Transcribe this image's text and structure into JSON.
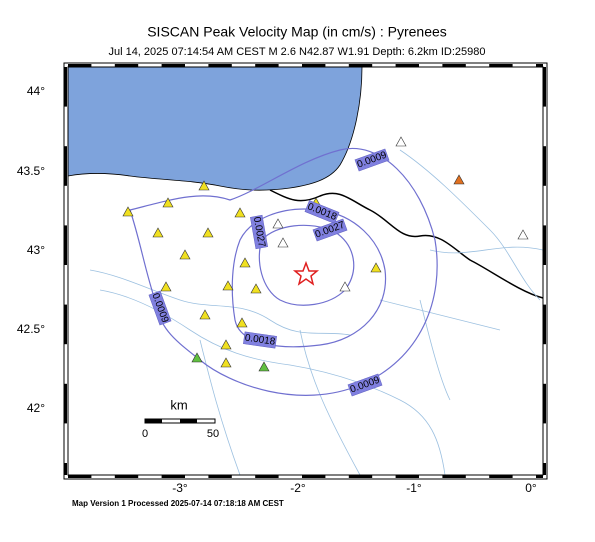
{
  "header": {
    "title": "SISCAN Peak Velocity Map (in cm/s) : Pyrenees",
    "subtitle": "Jul 14, 2025 07:14:54 AM CEST   M 2.6   N42.87 W1.91   Depth: 6.2km   ID:25980"
  },
  "axes": {
    "latitude_labels": [
      "44°",
      "43.5°",
      "43°",
      "42.5°",
      "42°"
    ],
    "longitude_labels": [
      "-3°",
      "-2°",
      "-1°",
      "0°"
    ]
  },
  "contour_labels": [
    "0.0009",
    "0.0009",
    "0.0009",
    "0.0018",
    "0.0018",
    "0.0027",
    "0.0027"
  ],
  "scale_bar": {
    "unit": "km",
    "labels": [
      "0",
      "50"
    ]
  },
  "footer": "Map Version 1 Processed 2025-07-14 07:18:18 AM CEST"
}
